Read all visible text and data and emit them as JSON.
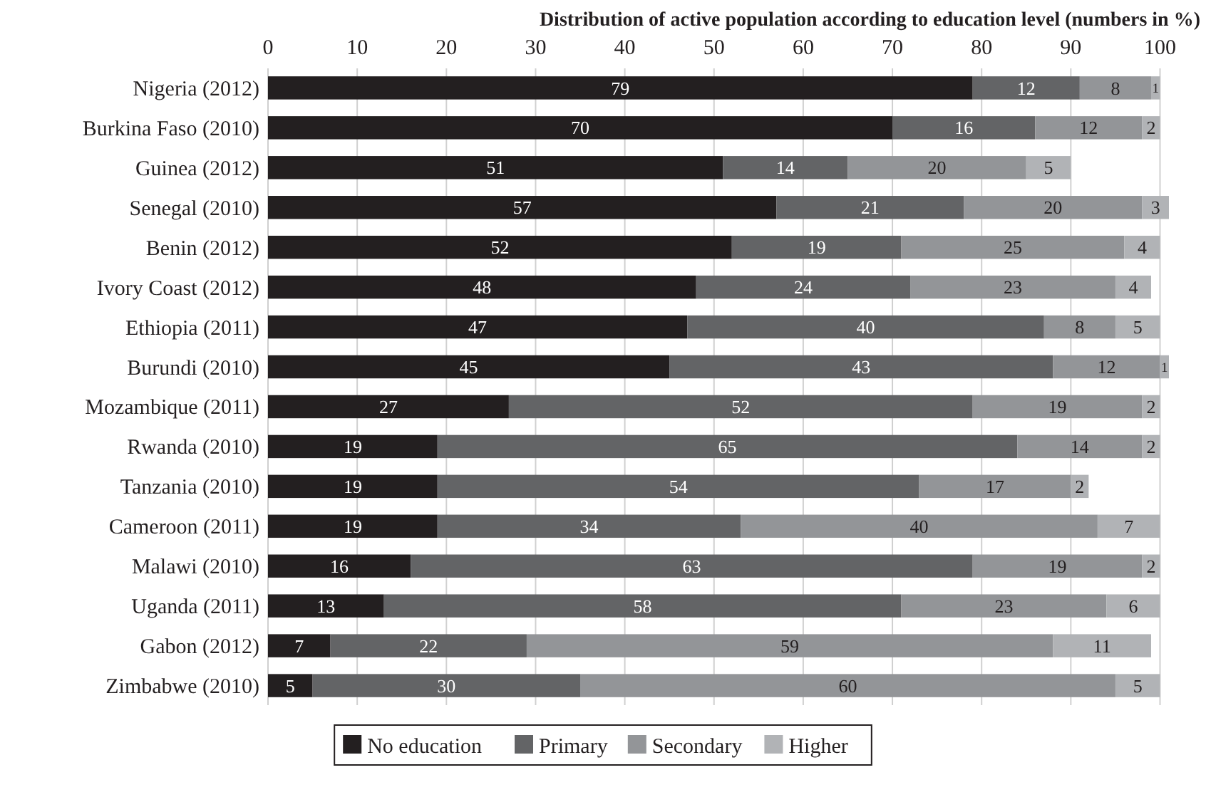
{
  "chart_data": {
    "type": "bar",
    "orientation": "horizontal",
    "stacked": true,
    "title": "Distribution of active population according to education level (numbers in %)",
    "categories": [
      "Nigeria (2012)",
      "Burkina Faso (2010)",
      "Guinea (2012)",
      "Senegal (2010)",
      "Benin (2012)",
      "Ivory Coast (2012)",
      "Ethiopia (2011)",
      "Burundi (2010)",
      "Mozambique (2011)",
      "Rwanda (2010)",
      "Tanzania (2010)",
      "Cameroon (2011)",
      "Malawi (2010)",
      "Uganda (2011)",
      "Gabon (2012)",
      "Zimbabwe (2010)"
    ],
    "series": [
      {
        "name": "No education",
        "color": "#231f20",
        "values": [
          79,
          70,
          51,
          57,
          52,
          48,
          47,
          45,
          27,
          19,
          19,
          19,
          16,
          13,
          7,
          5
        ]
      },
      {
        "name": "Primary",
        "color": "#636466",
        "values": [
          12,
          16,
          14,
          21,
          19,
          24,
          40,
          43,
          52,
          65,
          54,
          34,
          63,
          58,
          22,
          30
        ]
      },
      {
        "name": "Secondary",
        "color": "#939598",
        "values": [
          8,
          12,
          20,
          20,
          25,
          23,
          8,
          12,
          19,
          14,
          17,
          40,
          19,
          23,
          59,
          60
        ]
      },
      {
        "name": "Higher",
        "color": "#b1b3b6",
        "values": [
          1,
          2,
          5,
          3,
          4,
          4,
          5,
          1,
          2,
          2,
          2,
          7,
          2,
          6,
          11,
          5
        ]
      }
    ],
    "xlim": [
      0,
      101
    ],
    "xticks": [
      0,
      10,
      20,
      30,
      40,
      50,
      60,
      70,
      80,
      90,
      100
    ],
    "grid": "x",
    "legend": "bottom",
    "data_labels": true
  }
}
